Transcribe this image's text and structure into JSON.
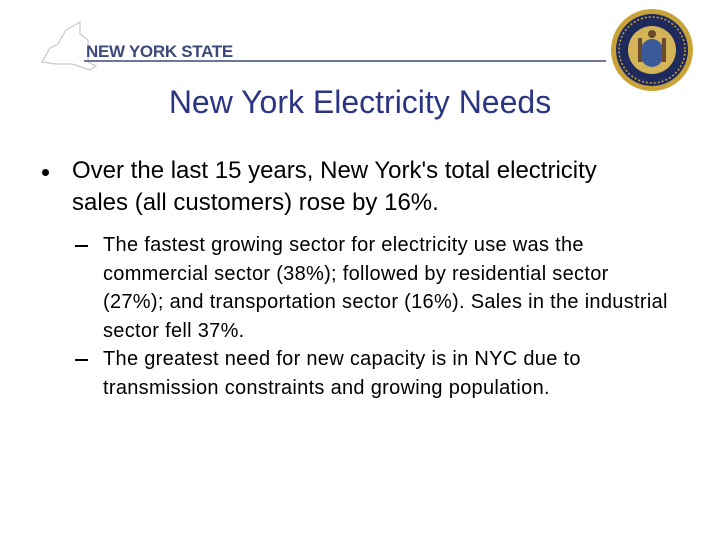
{
  "header": {
    "logo_text": "NEW YORK STATE"
  },
  "title": "New York Electricity Needs",
  "bullets": [
    {
      "text": "Over the last 15 years, New York's total electricity sales (all customers) rose by 16%.",
      "sub_bullets": [
        "The fastest growing sector for electricity use was the commercial sector (38%); followed by residential sector (27%); and transportation sector (16%).  Sales in the industrial sector fell 37%.",
        "The greatest need for new capacity is in NYC due to transmission constraints and growing population."
      ]
    }
  ]
}
